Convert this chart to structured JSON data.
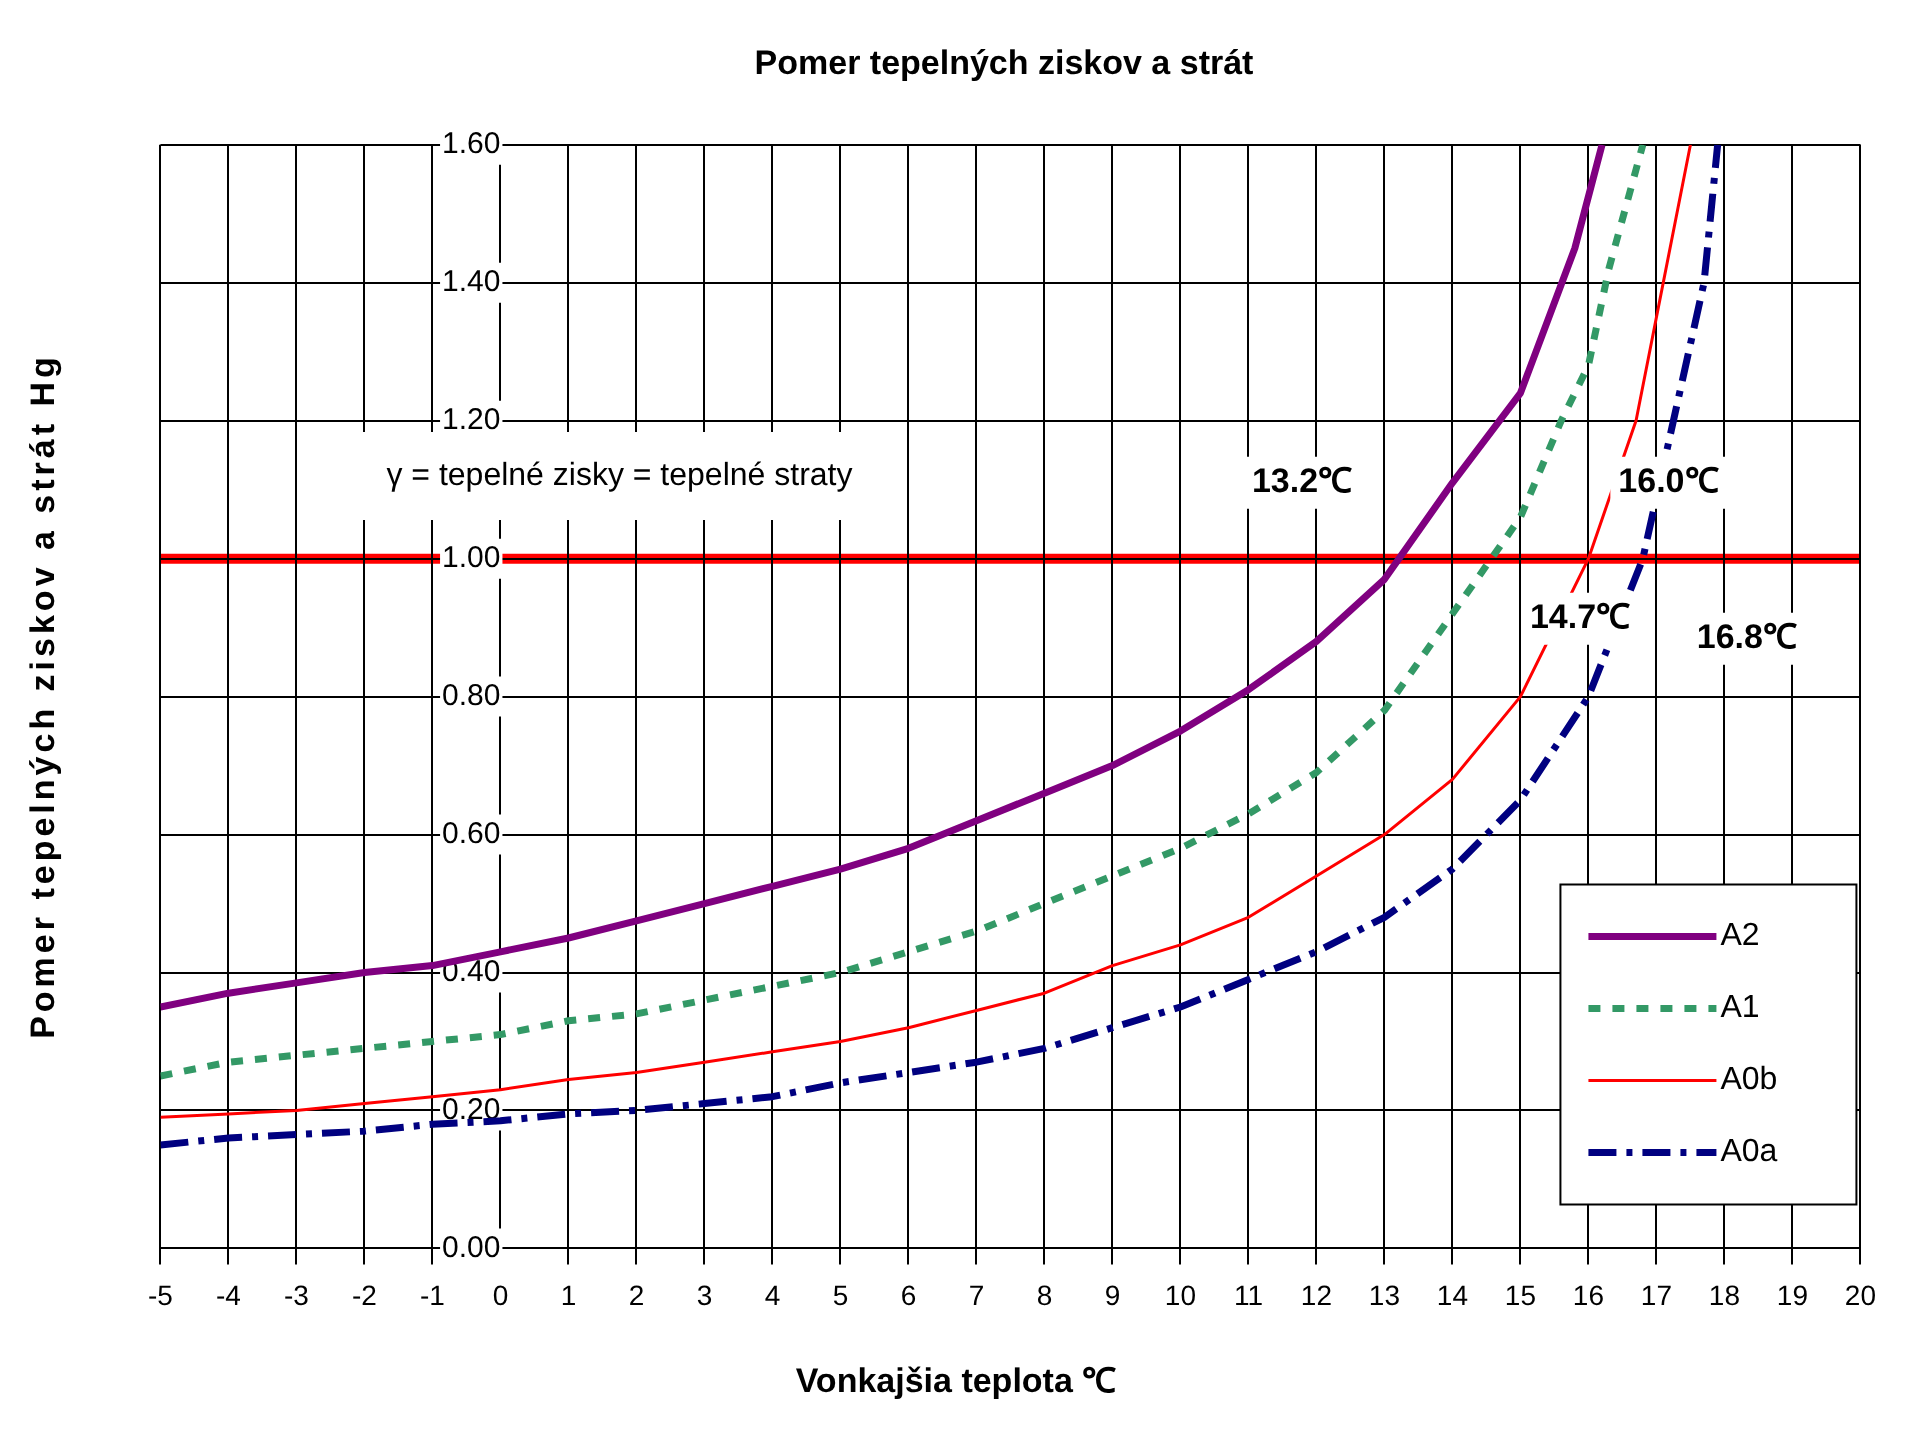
{
  "chart_data": {
    "type": "line",
    "title": "Pomer tepelných ziskov a strát",
    "xlabel": "Vonkajšia teplota   ℃",
    "ylabel": "Pomer tepelných ziskov a strát   Hg",
    "xlim": [
      -5,
      20
    ],
    "xticks": [
      -5,
      -4,
      -3,
      -2,
      -1,
      0,
      1,
      2,
      3,
      4,
      5,
      6,
      7,
      8,
      9,
      10,
      11,
      12,
      13,
      14,
      15,
      16,
      17,
      18,
      19,
      20
    ],
    "ylim": [
      0,
      1.6
    ],
    "yticks": [
      {
        "value": 0,
        "label": "0.00"
      },
      {
        "value": 0.2,
        "label": "0.20"
      },
      {
        "value": 0.4,
        "label": "0.40"
      },
      {
        "value": 0.6,
        "label": "0.60"
      },
      {
        "value": 0.8,
        "label": "0.80"
      },
      {
        "value": 1,
        "label": "1.00"
      },
      {
        "value": 1.2,
        "label": "1.20"
      },
      {
        "value": 1.4,
        "label": "1.40"
      },
      {
        "value": 1.6,
        "label": "1.60"
      }
    ],
    "grid": true,
    "legend": "bottom right",
    "marker": "none",
    "series": [
      {
        "name": "A2",
        "color": "#800080",
        "line_style": "solid",
        "x": [
          -5,
          -4,
          -3,
          -2,
          -1,
          0,
          1,
          2,
          3,
          4,
          5,
          6,
          7,
          8,
          9,
          10,
          11,
          12,
          13,
          14,
          15,
          15.8,
          16.2
        ],
        "values": [
          0.35,
          0.37,
          0.385,
          0.4,
          0.41,
          0.43,
          0.45,
          0.475,
          0.5,
          0.525,
          0.55,
          0.58,
          0.62,
          0.66,
          0.7,
          0.75,
          0.81,
          0.88,
          0.97,
          1.11,
          1.24,
          1.45,
          1.6
        ]
      },
      {
        "name": "A1",
        "color": "#339966",
        "line_style": "dotted",
        "x": [
          -5,
          -4,
          -3,
          -2,
          -1,
          0,
          1,
          2,
          3,
          4,
          5,
          6,
          7,
          8,
          9,
          10,
          11,
          12,
          13,
          14,
          15,
          15.6,
          16,
          16.3,
          16.8
        ],
        "values": [
          0.25,
          0.27,
          0.28,
          0.29,
          0.3,
          0.31,
          0.33,
          0.34,
          0.36,
          0.38,
          0.4,
          0.43,
          0.46,
          0.5,
          0.54,
          0.58,
          0.63,
          0.69,
          0.78,
          0.92,
          1.06,
          1.2,
          1.28,
          1.42,
          1.6
        ]
      },
      {
        "name": "A0b",
        "color": "#ff0000",
        "line_style": "solid",
        "x": [
          -5,
          -4,
          -3,
          -2,
          -1,
          0,
          1,
          2,
          3,
          4,
          5,
          6,
          7,
          8,
          9,
          10,
          11,
          12,
          13,
          14,
          15,
          16,
          16.7,
          17.5
        ],
        "values": [
          0.19,
          0.195,
          0.2,
          0.21,
          0.22,
          0.23,
          0.245,
          0.255,
          0.27,
          0.285,
          0.3,
          0.32,
          0.345,
          0.37,
          0.41,
          0.44,
          0.48,
          0.54,
          0.6,
          0.68,
          0.8,
          1.0,
          1.2,
          1.6
        ]
      },
      {
        "name": "A0a",
        "color": "#000080",
        "line_style": "dashed",
        "x": [
          -5,
          -4,
          -3,
          -2,
          -1,
          0,
          1,
          2,
          3,
          4,
          5,
          6,
          7,
          8,
          9,
          10,
          11,
          12,
          13,
          14,
          15,
          16,
          16.8,
          17.7,
          17.9
        ],
        "values": [
          0.15,
          0.16,
          0.165,
          0.17,
          0.18,
          0.185,
          0.195,
          0.2,
          0.21,
          0.22,
          0.24,
          0.255,
          0.27,
          0.29,
          0.32,
          0.35,
          0.39,
          0.43,
          0.48,
          0.55,
          0.65,
          0.8,
          1.0,
          1.4,
          1.6
        ]
      }
    ],
    "ref_lines": [
      {
        "axis": "y",
        "value": 1,
        "color": "#ff0000",
        "line_style": "solid"
      }
    ],
    "annotations": [
      "γ = tepelné zisky = tepelné straty",
      {
        "text": "13.2℃",
        "x": 13.2,
        "y": 1
      },
      {
        "text": "14.7℃",
        "x": 14.7,
        "y": 1
      },
      {
        "text": "16.0℃",
        "x": 16,
        "y": 1
      },
      {
        "text": "16.8℃",
        "x": 16.8,
        "y": 1
      }
    ]
  }
}
